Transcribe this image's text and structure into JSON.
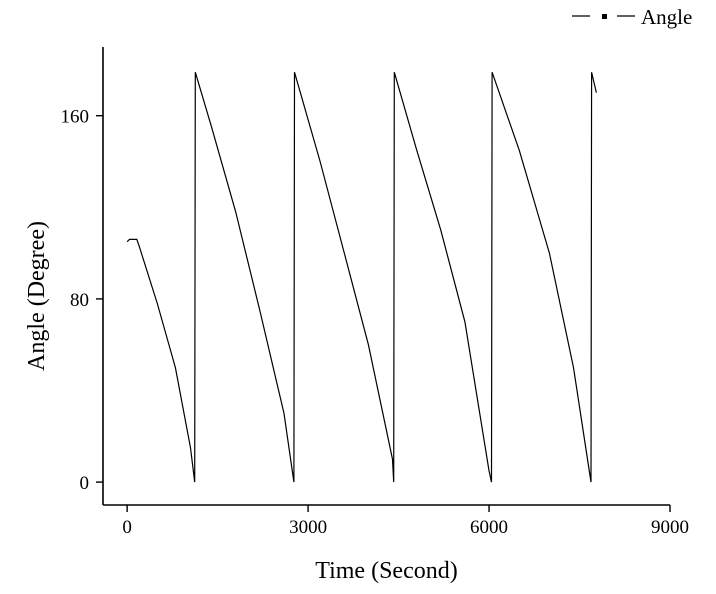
{
  "chart_data": {
    "type": "line",
    "title": "",
    "xlabel": "Time (Second)",
    "ylabel": "Angle (Degree)",
    "xlim": [
      -400,
      9000
    ],
    "ylim": [
      -10,
      190
    ],
    "xticks": [
      0,
      3000,
      6000,
      9000
    ],
    "yticks": [
      0,
      80,
      160
    ],
    "x_tick_labels": [
      "0",
      "3000",
      "6000",
      "9000"
    ],
    "y_tick_labels": [
      "0",
      "80",
      "160"
    ],
    "grid": false,
    "legend": {
      "placement": "top-right",
      "label": "Angle"
    },
    "series": [
      {
        "name": "Angle",
        "color": "#000000",
        "points": [
          [
            0,
            105
          ],
          [
            40,
            106
          ],
          [
            160,
            106
          ],
          [
            200,
            103
          ],
          [
            500,
            78
          ],
          [
            800,
            50
          ],
          [
            1050,
            15
          ],
          [
            1120,
            0
          ],
          [
            1130,
            179
          ],
          [
            1400,
            155
          ],
          [
            1800,
            118
          ],
          [
            2200,
            75
          ],
          [
            2600,
            30
          ],
          [
            2765,
            0
          ],
          [
            2775,
            179
          ],
          [
            3200,
            140
          ],
          [
            3600,
            100
          ],
          [
            4000,
            60
          ],
          [
            4400,
            10
          ],
          [
            4420,
            0
          ],
          [
            4430,
            179
          ],
          [
            4800,
            145
          ],
          [
            5200,
            110
          ],
          [
            5600,
            70
          ],
          [
            6000,
            5
          ],
          [
            6040,
            0
          ],
          [
            6050,
            179
          ],
          [
            6500,
            145
          ],
          [
            7000,
            100
          ],
          [
            7400,
            50
          ],
          [
            7690,
            0
          ],
          [
            7700,
            179
          ],
          [
            7780,
            170
          ]
        ]
      }
    ]
  }
}
